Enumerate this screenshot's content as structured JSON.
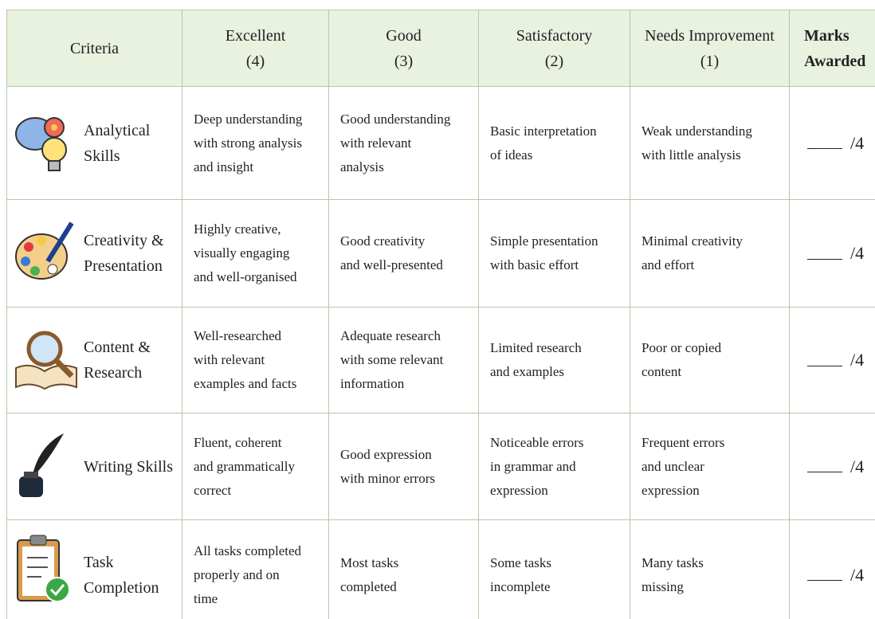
{
  "header": {
    "criteria": "Criteria",
    "levels": [
      {
        "label": "Excellent",
        "score": "(4)"
      },
      {
        "label": "Good",
        "score": "(3)"
      },
      {
        "label": "Satisfactory",
        "score": "(2)"
      },
      {
        "label": "Needs Improvement",
        "score": "(1)"
      }
    ],
    "marks": [
      "Marks",
      "Awarded"
    ]
  },
  "rows": [
    {
      "criterion": [
        "Analytical",
        "Skills"
      ],
      "descriptors": [
        [
          "Deep understanding",
          "with strong analysis",
          "and insight"
        ],
        [
          "Good understanding",
          "with relevant",
          "analysis"
        ],
        [
          "Basic interpretation",
          "of ideas"
        ],
        [
          "Weak understanding",
          "with little analysis"
        ]
      ],
      "marks": "/4"
    },
    {
      "criterion": [
        "Creativity &",
        "Presentation"
      ],
      "descriptors": [
        [
          "Highly creative,",
          "visually engaging",
          "and well-organised"
        ],
        [
          "Good creativity",
          "and well-presented"
        ],
        [
          "Simple presentation",
          "with basic effort"
        ],
        [
          "Minimal creativity",
          "and effort"
        ]
      ],
      "marks": "/4"
    },
    {
      "criterion": [
        "Content &",
        "Research"
      ],
      "descriptors": [
        [
          "Well-researched",
          "with relevant",
          "examples and facts"
        ],
        [
          "Adequate research",
          "with some relevant",
          "information"
        ],
        [
          "Limited research",
          "and examples"
        ],
        [
          "Poor or copied",
          "content"
        ]
      ],
      "marks": "/4"
    },
    {
      "criterion": [
        "Writing Skills"
      ],
      "descriptors": [
        [
          "Fluent, coherent",
          "and grammatically",
          "correct"
        ],
        [
          "Good expression",
          "with minor errors"
        ],
        [
          "Noticeable errors",
          "in grammar and",
          "expression"
        ],
        [
          "Frequent errors",
          "and unclear",
          "expression"
        ]
      ],
      "marks": "/4"
    },
    {
      "criterion": [
        "Task",
        "Completion"
      ],
      "descriptors": [
        [
          "All tasks completed",
          "properly and on",
          "time"
        ],
        [
          "Most tasks",
          "completed"
        ],
        [
          "Some tasks",
          "incomplete"
        ],
        [
          "Many tasks",
          "missing"
        ]
      ],
      "marks": "/4"
    }
  ]
}
